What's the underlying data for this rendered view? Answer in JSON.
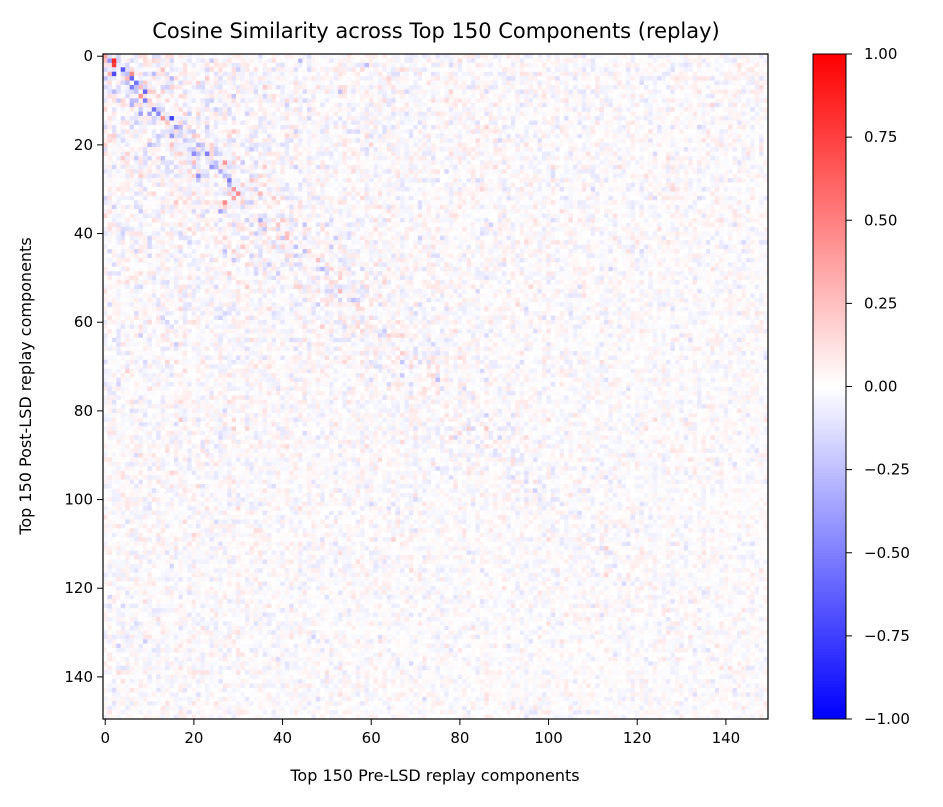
{
  "chart_data": {
    "type": "heatmap",
    "title": "Cosine Similarity across Top 150 Components (replay)",
    "xlabel": "Top 150 Pre-LSD replay components",
    "ylabel": "Top 150 Post-LSD replay components",
    "rows": 150,
    "cols": 150,
    "xlim": [
      0,
      150
    ],
    "ylim": [
      150,
      0
    ],
    "xticks": [
      0,
      20,
      40,
      60,
      80,
      100,
      120,
      140
    ],
    "yticks": [
      0,
      20,
      40,
      60,
      80,
      100,
      120,
      140
    ],
    "colormap": "bwr",
    "vmin": -1.0,
    "vmax": 1.0,
    "colorbar_ticks": [
      1.0,
      0.75,
      0.5,
      0.25,
      0.0,
      -0.25,
      -0.5,
      -0.75,
      -1.0
    ],
    "colorbar_tick_labels": [
      "1.00",
      "0.75",
      "0.50",
      "0.25",
      "0.00",
      "−0.25",
      "−0.50",
      "−0.75",
      "−1.00"
    ],
    "colors": {
      "low": "#0000ff",
      "mid": "#ffffff",
      "high": "#ff0000"
    },
    "notable_values": [
      {
        "row": 0,
        "col": 0,
        "value": 0.35
      },
      {
        "row": 1,
        "col": 1,
        "value": -0.4
      },
      {
        "row": 1,
        "col": 2,
        "value": 0.85
      },
      {
        "row": 2,
        "col": 2,
        "value": 0.75
      },
      {
        "row": 3,
        "col": 4,
        "value": -0.65
      },
      {
        "row": 4,
        "col": 2,
        "value": -0.7
      },
      {
        "row": 4,
        "col": 6,
        "value": 0.45
      },
      {
        "row": 5,
        "col": 6,
        "value": -0.6
      },
      {
        "row": 6,
        "col": 7,
        "value": -0.55
      },
      {
        "row": 7,
        "col": 6,
        "value": -0.5
      },
      {
        "row": 8,
        "col": 9,
        "value": -0.6
      },
      {
        "row": 9,
        "col": 8,
        "value": 0.4
      },
      {
        "row": 10,
        "col": 9,
        "value": -0.5
      },
      {
        "row": 12,
        "col": 11,
        "value": -0.55
      },
      {
        "row": 13,
        "col": 12,
        "value": -0.45
      },
      {
        "row": 14,
        "col": 13,
        "value": 0.4
      },
      {
        "row": 14,
        "col": 15,
        "value": -0.75
      },
      {
        "row": 16,
        "col": 16,
        "value": -0.4
      },
      {
        "row": 18,
        "col": 15,
        "value": -0.4
      },
      {
        "row": 22,
        "col": 20,
        "value": -0.45
      },
      {
        "row": 22,
        "col": 23,
        "value": -0.5
      },
      {
        "row": 24,
        "col": 27,
        "value": 0.4
      },
      {
        "row": 25,
        "col": 24,
        "value": -0.4
      },
      {
        "row": 27,
        "col": 21,
        "value": -0.45
      },
      {
        "row": 28,
        "col": 28,
        "value": -0.5
      },
      {
        "row": 30,
        "col": 29,
        "value": 0.4
      },
      {
        "row": 31,
        "col": 30,
        "value": 0.45
      },
      {
        "row": 32,
        "col": 29,
        "value": 0.35
      },
      {
        "row": 33,
        "col": 27,
        "value": 0.45
      },
      {
        "row": 35,
        "col": 26,
        "value": -0.35
      }
    ]
  }
}
